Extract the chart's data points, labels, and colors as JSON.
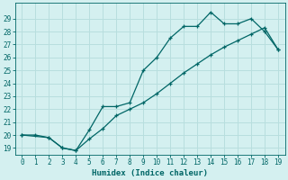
{
  "xlabel": "Humidex (Indice chaleur)",
  "bg_color": "#d4f0f0",
  "grid_color": "#b8dede",
  "line_color": "#006666",
  "upper_x": [
    0,
    1,
    2,
    3,
    4,
    5,
    6,
    7,
    8,
    9,
    10,
    11,
    12,
    13,
    14,
    15,
    16,
    17,
    18,
    19
  ],
  "upper_y": [
    20.0,
    20.0,
    19.8,
    19.0,
    18.8,
    20.4,
    22.2,
    22.2,
    22.5,
    25.0,
    26.0,
    27.5,
    28.4,
    28.4,
    29.5,
    28.6,
    28.6,
    29.0,
    28.0,
    26.6
  ],
  "lower_x": [
    0,
    2,
    3,
    4,
    5,
    6,
    7,
    8,
    9,
    10,
    11,
    12,
    13,
    14,
    15,
    16,
    17,
    18,
    19
  ],
  "lower_y": [
    20.0,
    19.8,
    19.0,
    18.8,
    19.7,
    20.5,
    21.5,
    22.0,
    22.5,
    23.2,
    24.0,
    24.8,
    25.5,
    26.2,
    26.8,
    27.3,
    27.8,
    28.3,
    26.6
  ],
  "xlim": [
    -0.5,
    19.5
  ],
  "ylim": [
    18.5,
    30.2
  ],
  "xticks": [
    0,
    1,
    2,
    3,
    4,
    5,
    6,
    7,
    8,
    9,
    10,
    11,
    12,
    13,
    14,
    15,
    16,
    17,
    18,
    19
  ],
  "yticks": [
    19,
    20,
    21,
    22,
    23,
    24,
    25,
    26,
    27,
    28,
    29
  ],
  "xlabel_fontsize": 6.5,
  "tick_fontsize": 5.5
}
